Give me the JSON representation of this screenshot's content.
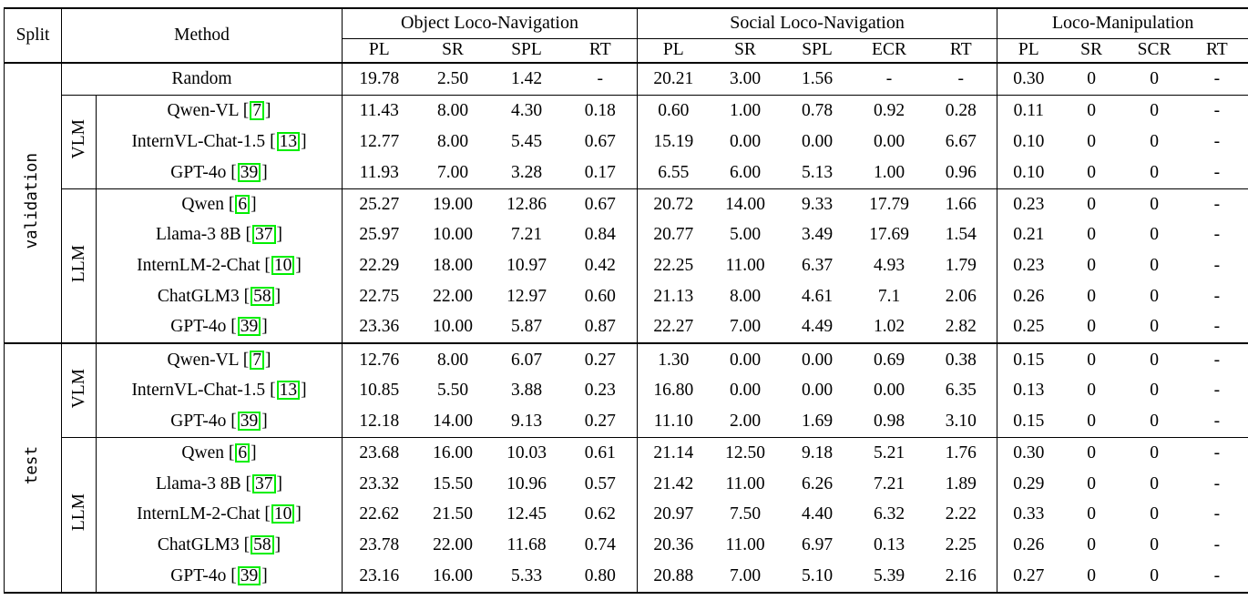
{
  "colors": {
    "citation_border": "#00ee00",
    "text": "#000000",
    "background": "#ffffff"
  },
  "header": {
    "split": "Split",
    "method": "Method",
    "groups": [
      {
        "name": "Object Loco-Navigation",
        "cols": [
          "PL",
          "SR",
          "SPL",
          "RT"
        ]
      },
      {
        "name": "Social Loco-Navigation",
        "cols": [
          "PL",
          "SR",
          "SPL",
          "ECR",
          "RT"
        ]
      },
      {
        "name": "Loco-Manipulation",
        "cols": [
          "PL",
          "SR",
          "SCR",
          "RT"
        ]
      }
    ]
  },
  "sections": [
    {
      "split": "validation",
      "blocks": [
        {
          "label": "",
          "rows": [
            {
              "method": "Random",
              "cite": "",
              "values": [
                "19.78",
                "2.50",
                "1.42",
                "-",
                "20.21",
                "3.00",
                "1.56",
                "-",
                "-",
                "0.30",
                "0",
                "0",
                "-"
              ]
            }
          ]
        },
        {
          "label": "VLM",
          "rows": [
            {
              "method": "Qwen-VL",
              "cite": "7",
              "values": [
                "11.43",
                "8.00",
                "4.30",
                "0.18",
                "0.60",
                "1.00",
                "0.78",
                "0.92",
                "0.28",
                "0.11",
                "0",
                "0",
                "-"
              ]
            },
            {
              "method": "InternVL-Chat-1.5",
              "cite": "13",
              "values": [
                "12.77",
                "8.00",
                "5.45",
                "0.67",
                "15.19",
                "0.00",
                "0.00",
                "0.00",
                "6.67",
                "0.10",
                "0",
                "0",
                "-"
              ]
            },
            {
              "method": "GPT-4o",
              "cite": "39",
              "values": [
                "11.93",
                "7.00",
                "3.28",
                "0.17",
                "6.55",
                "6.00",
                "5.13",
                "1.00",
                "0.96",
                "0.10",
                "0",
                "0",
                "-"
              ]
            }
          ]
        },
        {
          "label": "LLM",
          "rows": [
            {
              "method": "Qwen",
              "cite": "6",
              "values": [
                "25.27",
                "19.00",
                "12.86",
                "0.67",
                "20.72",
                "14.00",
                "9.33",
                "17.79",
                "1.66",
                "0.23",
                "0",
                "0",
                "-"
              ]
            },
            {
              "method": "Llama-3 8B",
              "cite": "37",
              "values": [
                "25.97",
                "10.00",
                "7.21",
                "0.84",
                "20.77",
                "5.00",
                "3.49",
                "17.69",
                "1.54",
                "0.21",
                "0",
                "0",
                "-"
              ]
            },
            {
              "method": "InternLM-2-Chat",
              "cite": "10",
              "values": [
                "22.29",
                "18.00",
                "10.97",
                "0.42",
                "22.25",
                "11.00",
                "6.37",
                "4.93",
                "1.79",
                "0.23",
                "0",
                "0",
                "-"
              ]
            },
            {
              "method": "ChatGLM3",
              "cite": "58",
              "values": [
                "22.75",
                "22.00",
                "12.97",
                "0.60",
                "21.13",
                "8.00",
                "4.61",
                "7.1",
                "2.06",
                "0.26",
                "0",
                "0",
                "-"
              ]
            },
            {
              "method": "GPT-4o",
              "cite": "39",
              "values": [
                "23.36",
                "10.00",
                "5.87",
                "0.87",
                "22.27",
                "7.00",
                "4.49",
                "1.02",
                "2.82",
                "0.25",
                "0",
                "0",
                "-"
              ]
            }
          ]
        }
      ]
    },
    {
      "split": "test",
      "blocks": [
        {
          "label": "VLM",
          "rows": [
            {
              "method": "Qwen-VL",
              "cite": "7",
              "values": [
                "12.76",
                "8.00",
                "6.07",
                "0.27",
                "1.30",
                "0.00",
                "0.00",
                "0.69",
                "0.38",
                "0.15",
                "0",
                "0",
                "-"
              ]
            },
            {
              "method": "InternVL-Chat-1.5",
              "cite": "13",
              "values": [
                "10.85",
                "5.50",
                "3.88",
                "0.23",
                "16.80",
                "0.00",
                "0.00",
                "0.00",
                "6.35",
                "0.13",
                "0",
                "0",
                "-"
              ]
            },
            {
              "method": "GPT-4o",
              "cite": "39",
              "values": [
                "12.18",
                "14.00",
                "9.13",
                "0.27",
                "11.10",
                "2.00",
                "1.69",
                "0.98",
                "3.10",
                "0.15",
                "0",
                "0",
                "-"
              ]
            }
          ]
        },
        {
          "label": "LLM",
          "rows": [
            {
              "method": "Qwen",
              "cite": "6",
              "values": [
                "23.68",
                "16.00",
                "10.03",
                "0.61",
                "21.14",
                "12.50",
                "9.18",
                "5.21",
                "1.76",
                "0.30",
                "0",
                "0",
                "-"
              ]
            },
            {
              "method": "Llama-3 8B",
              "cite": "37",
              "values": [
                "23.32",
                "15.50",
                "10.96",
                "0.57",
                "21.42",
                "11.00",
                "6.26",
                "7.21",
                "1.89",
                "0.29",
                "0",
                "0",
                "-"
              ]
            },
            {
              "method": "InternLM-2-Chat",
              "cite": "10",
              "values": [
                "22.62",
                "21.50",
                "12.45",
                "0.62",
                "20.97",
                "7.50",
                "4.40",
                "6.32",
                "2.22",
                "0.33",
                "0",
                "0",
                "-"
              ]
            },
            {
              "method": "ChatGLM3",
              "cite": "58",
              "values": [
                "23.78",
                "22.00",
                "11.68",
                "0.74",
                "20.36",
                "11.00",
                "6.97",
                "0.13",
                "2.25",
                "0.26",
                "0",
                "0",
                "-"
              ]
            },
            {
              "method": "GPT-4o",
              "cite": "39",
              "values": [
                "23.16",
                "16.00",
                "5.33",
                "0.80",
                "20.88",
                "7.00",
                "5.10",
                "5.39",
                "2.16",
                "0.27",
                "0",
                "0",
                "-"
              ]
            }
          ]
        }
      ]
    }
  ]
}
